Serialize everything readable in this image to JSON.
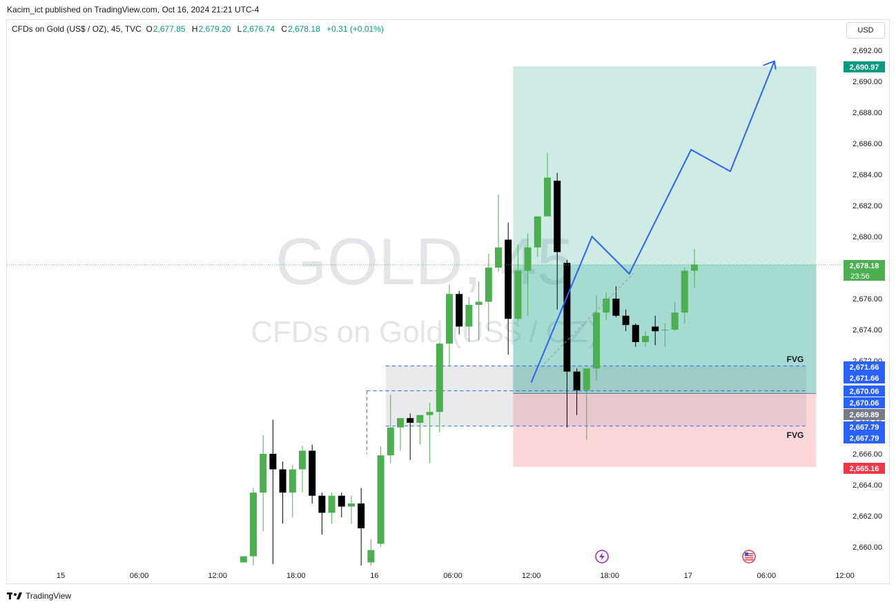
{
  "publisher": "Kacim_ict published on TradingView.com, Oct 16, 2024 21:21 UTC-4",
  "legend": {
    "symbol": "CFDs on Gold (US$ / OZ), 45, TVC",
    "o_label": "O",
    "o": "2,677.85",
    "h_label": "H",
    "h": "2,679.20",
    "l_label": "L",
    "l": "2,676.74",
    "c_label": "C",
    "c": "2,678.18",
    "change": "+0.31 (+0.01%)"
  },
  "currency": "USD",
  "watermark": {
    "line1": "GOLD, 45",
    "line2": "CFDs on Gold (US$ / OZ)"
  },
  "footer": "TradingView",
  "colors": {
    "up": "#4caf50",
    "down": "#000000",
    "target": "#089981",
    "stop": "#f23645",
    "fvg_line": "#2962ff"
  },
  "chart_data": {
    "type": "candlestick",
    "y_axis": {
      "ylim": [
        2658.8,
        2692.7
      ],
      "ticks": [
        "2,692.00",
        "2,690.00",
        "2,688.00",
        "2,686.00",
        "2,684.00",
        "2,682.00",
        "2,680.00",
        "2,678.00",
        "2,676.00",
        "2,674.00",
        "2,672.00",
        "2,670.00",
        "2,668.00",
        "2,666.00",
        "2,664.00",
        "2,662.00",
        "2,660.00"
      ]
    },
    "x_axis": {
      "ticks": [
        {
          "label": "15",
          "bar": -10
        },
        {
          "label": "06:00",
          "bar": -2
        },
        {
          "label": "12:00",
          "bar": 6
        },
        {
          "label": "18:00",
          "bar": 14
        },
        {
          "label": "16",
          "bar": 22
        },
        {
          "label": "06:00",
          "bar": 30
        },
        {
          "label": "12:00",
          "bar": 38
        },
        {
          "label": "18:00",
          "bar": 46
        },
        {
          "label": "17",
          "bar": 54
        },
        {
          "label": "06:00",
          "bar": 62
        },
        {
          "label": "12:00",
          "bar": 70
        }
      ]
    },
    "candles": [
      [
        2659.0,
        2659.4,
        2659.0,
        2659.4
      ],
      [
        2659.4,
        2663.8,
        2658.8,
        2663.5
      ],
      [
        2663.5,
        2667.2,
        2661.0,
        2666.0
      ],
      [
        2666.0,
        2668.2,
        2658.9,
        2665.0
      ],
      [
        2665.0,
        2665.5,
        2661.5,
        2663.5
      ],
      [
        2663.5,
        2665.3,
        2661.9,
        2665.0
      ],
      [
        2665.0,
        2666.5,
        2663.5,
        2666.2
      ],
      [
        2666.2,
        2666.6,
        2662.8,
        2663.3
      ],
      [
        2663.3,
        2663.5,
        2660.8,
        2662.2
      ],
      [
        2662.2,
        2663.5,
        2661.5,
        2663.3
      ],
      [
        2663.3,
        2663.5,
        2661.9,
        2662.6
      ],
      [
        2662.6,
        2663.3,
        2661.5,
        2662.8
      ],
      [
        2662.8,
        2663.8,
        2658.8,
        2661.2
      ],
      [
        2659.0,
        2660.5,
        2658.8,
        2659.8
      ],
      [
        2660.2,
        2666.5,
        2660.0,
        2665.9
      ],
      [
        2665.9,
        2669.8,
        2665.4,
        2667.7
      ],
      [
        2667.7,
        2668.2,
        2666.2,
        2668.3
      ],
      [
        2668.3,
        2668.6,
        2665.6,
        2668.0
      ],
      [
        2668.0,
        2668.3,
        2666.6,
        2668.5
      ],
      [
        2668.5,
        2669.3,
        2665.4,
        2668.7
      ],
      [
        2668.7,
        2673.2,
        2667.4,
        2673.1
      ],
      [
        2673.1,
        2676.9,
        2671.6,
        2676.3
      ],
      [
        2676.3,
        2676.5,
        2673.7,
        2674.2
      ],
      [
        2674.2,
        2676.1,
        2673.2,
        2675.6
      ],
      [
        2675.6,
        2677.1,
        2673.3,
        2675.8
      ],
      [
        2675.8,
        2678.9,
        2673.9,
        2678.0
      ],
      [
        2678.0,
        2682.7,
        2677.7,
        2679.3
      ],
      [
        2679.8,
        2680.9,
        2672.4,
        2674.7
      ],
      [
        2674.7,
        2679.5,
        2674.5,
        2677.8
      ],
      [
        2677.8,
        2680.2,
        2674.9,
        2679.3
      ],
      [
        2679.3,
        2681.3,
        2678.7,
        2681.3
      ],
      [
        2681.3,
        2685.4,
        2681.6,
        2683.8
      ],
      [
        2683.6,
        2684.1,
        2675.3,
        2679.0
      ],
      [
        2678.3,
        2678.5,
        2667.7,
        2671.3
      ],
      [
        2671.3,
        2671.5,
        2668.5,
        2670.1
      ],
      [
        2670.1,
        2671.3,
        2666.9,
        2671.5
      ],
      [
        2671.5,
        2676.2,
        2670.7,
        2675.1
      ],
      [
        2675.1,
        2676.4,
        2674.6,
        2676.0
      ],
      [
        2676.0,
        2676.8,
        2674.8,
        2674.9
      ],
      [
        2674.9,
        2675.3,
        2673.9,
        2674.3
      ],
      [
        2674.3,
        2674.4,
        2672.9,
        2673.2
      ],
      [
        2673.2,
        2673.9,
        2672.9,
        2673.6
      ],
      [
        2674.2,
        2674.9,
        2673.0,
        2673.9
      ],
      [
        2674.0,
        2674.4,
        2672.9,
        2674.0
      ],
      [
        2674.0,
        2675.8,
        2673.9,
        2675.1
      ],
      [
        2675.1,
        2678.0,
        2674.4,
        2677.8
      ],
      [
        2677.8,
        2679.2,
        2676.7,
        2678.2
      ]
    ],
    "first_candle_bar": 9,
    "last_price": {
      "value": 2678.18,
      "label": "2,678.18",
      "countdown": "23:56"
    },
    "position": {
      "start_bar": 37,
      "end_bar": 67,
      "entry": 2669.89,
      "entry_label": "2,669.89",
      "target": 2690.97,
      "target_label": "2,690.97",
      "stop": 2665.16,
      "stop_label": "2,665.16"
    },
    "fvg_zones": [
      {
        "label": "FVG",
        "start_bar": 24,
        "top": 2671.66,
        "bottom": 2667.79,
        "top_label": "2,671.66",
        "bottom_label": "2,667.79"
      },
      {
        "label": "FVG",
        "start_bar": 22,
        "top": 2670.06,
        "bottom": 2670.06,
        "top_label": "2,670.06",
        "bottom_label": "2,670.06"
      }
    ],
    "fvg_label_top": "FVG",
    "fvg_label_bottom": "FVG",
    "projection_path": [
      [
        38,
        2670.6
      ],
      [
        44.2,
        2680.0
      ],
      [
        48,
        2677.6
      ],
      [
        54.3,
        2685.6
      ],
      [
        58.3,
        2684.2
      ],
      [
        62.8,
        2691.3
      ]
    ],
    "trend_line": [
      [
        39.3,
        2671.8
      ],
      [
        48.4,
        2677.6
      ]
    ]
  }
}
